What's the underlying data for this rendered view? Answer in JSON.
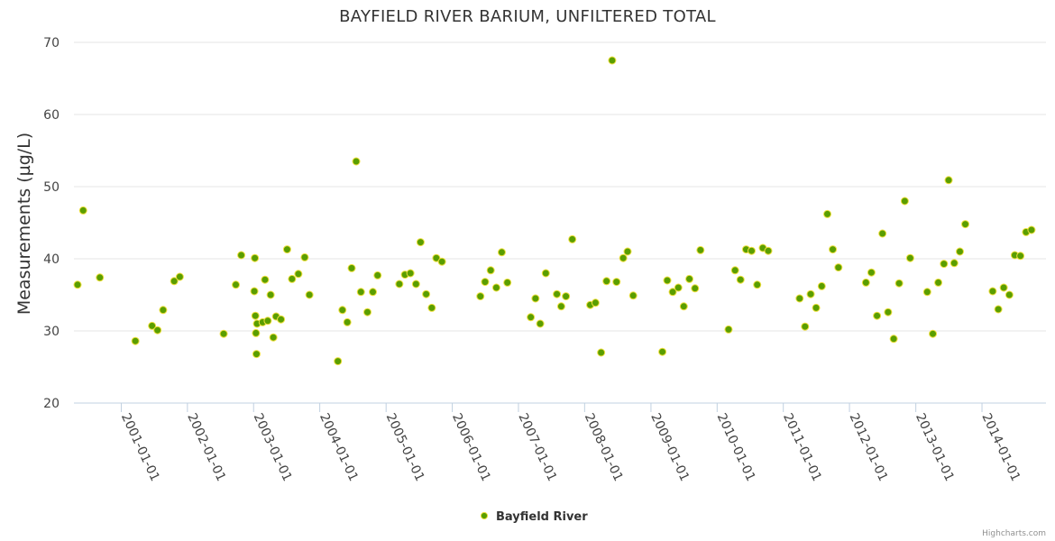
{
  "chart_data": {
    "type": "scatter",
    "title": "BAYFIELD RIVER BARIUM, UNFILTERED TOTAL",
    "ylabel": "Measurements (µg/L)",
    "xlabel": "",
    "ylim": [
      20,
      70
    ],
    "yticks": [
      20,
      30,
      40,
      50,
      60,
      70
    ],
    "xlim": [
      "2000-04-15",
      "2014-12-20"
    ],
    "xticks": [
      "2001-01-01",
      "2002-01-01",
      "2003-01-01",
      "2004-01-01",
      "2005-01-01",
      "2006-01-01",
      "2007-01-01",
      "2008-01-01",
      "2009-01-01",
      "2010-01-01",
      "2011-01-01",
      "2012-01-01",
      "2013-01-01",
      "2014-01-01"
    ],
    "grid": true,
    "legend": "bottom-center",
    "series": [
      {
        "name": "Bayfield River",
        "color": "#5a9e00",
        "points": [
          [
            "2000-05-05",
            36.4
          ],
          [
            "2000-06-05",
            46.7
          ],
          [
            "2000-09-05",
            37.4
          ],
          [
            "2001-03-20",
            28.6
          ],
          [
            "2001-06-20",
            30.7
          ],
          [
            "2001-07-20",
            30.1
          ],
          [
            "2001-08-20",
            32.9
          ],
          [
            "2001-10-20",
            36.9
          ],
          [
            "2001-11-20",
            37.5
          ],
          [
            "2002-07-20",
            29.6
          ],
          [
            "2002-09-25",
            36.4
          ],
          [
            "2002-10-25",
            40.5
          ],
          [
            "2003-01-05",
            35.5
          ],
          [
            "2003-01-08",
            40.1
          ],
          [
            "2003-01-11",
            32.1
          ],
          [
            "2003-01-14",
            29.7
          ],
          [
            "2003-01-17",
            26.8
          ],
          [
            "2003-01-20",
            31.0
          ],
          [
            "2003-02-20",
            31.2
          ],
          [
            "2003-03-05",
            37.1
          ],
          [
            "2003-03-20",
            31.4
          ],
          [
            "2003-04-05",
            35.0
          ],
          [
            "2003-04-20",
            29.1
          ],
          [
            "2003-05-05",
            32.0
          ],
          [
            "2003-06-01",
            31.6
          ],
          [
            "2003-07-05",
            41.3
          ],
          [
            "2003-08-01",
            37.2
          ],
          [
            "2003-09-05",
            37.9
          ],
          [
            "2003-10-10",
            40.2
          ],
          [
            "2003-11-05",
            35.0
          ],
          [
            "2004-04-10",
            25.8
          ],
          [
            "2004-05-05",
            32.9
          ],
          [
            "2004-06-01",
            31.2
          ],
          [
            "2004-06-25",
            38.7
          ],
          [
            "2004-07-20",
            53.5
          ],
          [
            "2004-08-15",
            35.4
          ],
          [
            "2004-09-20",
            32.6
          ],
          [
            "2004-10-20",
            35.4
          ],
          [
            "2004-11-15",
            37.7
          ],
          [
            "2005-03-15",
            36.5
          ],
          [
            "2005-04-15",
            37.8
          ],
          [
            "2005-05-15",
            38.0
          ],
          [
            "2005-06-15",
            36.5
          ],
          [
            "2005-07-10",
            42.3
          ],
          [
            "2005-08-10",
            35.1
          ],
          [
            "2005-09-10",
            33.2
          ],
          [
            "2005-10-05",
            40.1
          ],
          [
            "2005-11-05",
            39.6
          ],
          [
            "2006-06-05",
            34.8
          ],
          [
            "2006-07-01",
            36.8
          ],
          [
            "2006-08-01",
            38.4
          ],
          [
            "2006-09-01",
            36.0
          ],
          [
            "2006-10-01",
            40.9
          ],
          [
            "2006-11-01",
            36.7
          ],
          [
            "2007-03-10",
            31.9
          ],
          [
            "2007-04-05",
            34.5
          ],
          [
            "2007-05-01",
            31.0
          ],
          [
            "2007-06-01",
            38.0
          ],
          [
            "2007-08-01",
            35.1
          ],
          [
            "2007-08-25",
            33.4
          ],
          [
            "2007-09-20",
            34.8
          ],
          [
            "2007-10-25",
            42.7
          ],
          [
            "2008-02-01",
            33.6
          ],
          [
            "2008-03-01",
            33.9
          ],
          [
            "2008-04-01",
            27.0
          ],
          [
            "2008-05-01",
            36.9
          ],
          [
            "2008-06-01",
            67.5
          ],
          [
            "2008-06-25",
            36.8
          ],
          [
            "2008-08-01",
            40.1
          ],
          [
            "2008-08-25",
            41.0
          ],
          [
            "2008-09-25",
            34.9
          ],
          [
            "2009-03-05",
            27.1
          ],
          [
            "2009-04-01",
            37.0
          ],
          [
            "2009-05-01",
            35.4
          ],
          [
            "2009-06-01",
            36.0
          ],
          [
            "2009-07-01",
            33.4
          ],
          [
            "2009-08-01",
            37.2
          ],
          [
            "2009-09-01",
            35.9
          ],
          [
            "2009-10-01",
            41.2
          ],
          [
            "2010-03-05",
            30.2
          ],
          [
            "2010-04-10",
            38.4
          ],
          [
            "2010-05-10",
            37.1
          ],
          [
            "2010-06-10",
            41.3
          ],
          [
            "2010-07-10",
            41.1
          ],
          [
            "2010-08-10",
            36.4
          ],
          [
            "2010-09-10",
            41.5
          ],
          [
            "2010-10-10",
            41.1
          ],
          [
            "2011-04-01",
            34.5
          ],
          [
            "2011-05-01",
            30.6
          ],
          [
            "2011-06-01",
            35.1
          ],
          [
            "2011-07-01",
            33.2
          ],
          [
            "2011-08-01",
            36.2
          ],
          [
            "2011-09-01",
            46.2
          ],
          [
            "2011-10-01",
            41.3
          ],
          [
            "2011-11-01",
            38.8
          ],
          [
            "2012-04-01",
            36.7
          ],
          [
            "2012-05-01",
            38.1
          ],
          [
            "2012-06-01",
            32.1
          ],
          [
            "2012-07-01",
            43.5
          ],
          [
            "2012-08-01",
            32.6
          ],
          [
            "2012-09-01",
            28.9
          ],
          [
            "2012-10-01",
            36.6
          ],
          [
            "2012-11-01",
            48.0
          ],
          [
            "2012-12-01",
            40.1
          ],
          [
            "2013-03-05",
            35.4
          ],
          [
            "2013-04-05",
            29.6
          ],
          [
            "2013-05-05",
            36.7
          ],
          [
            "2013-06-05",
            39.3
          ],
          [
            "2013-07-01",
            50.9
          ],
          [
            "2013-08-01",
            39.4
          ],
          [
            "2013-09-01",
            41.0
          ],
          [
            "2013-10-01",
            44.8
          ],
          [
            "2014-03-01",
            35.5
          ],
          [
            "2014-04-01",
            33.0
          ],
          [
            "2014-05-01",
            36.0
          ],
          [
            "2014-06-01",
            35.0
          ],
          [
            "2014-07-01",
            40.5
          ],
          [
            "2014-08-01",
            40.4
          ],
          [
            "2014-09-01",
            43.7
          ],
          [
            "2014-10-01",
            44.0
          ]
        ]
      }
    ]
  },
  "credits": "Highcharts.com"
}
